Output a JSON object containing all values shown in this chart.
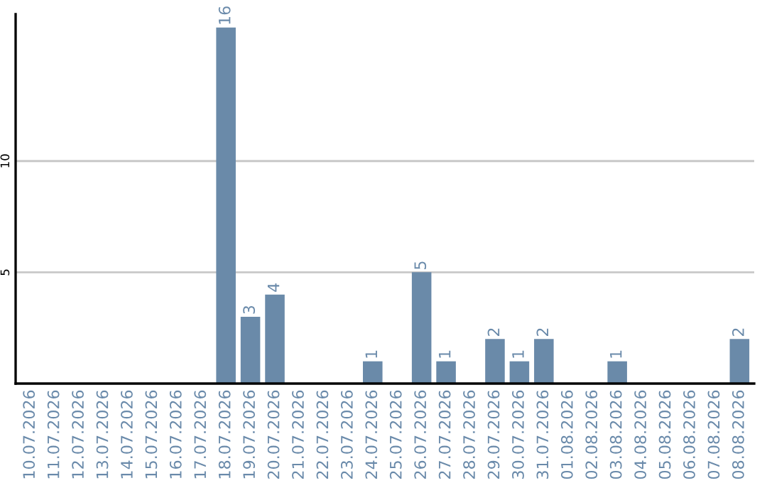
{
  "chart_data": {
    "type": "bar",
    "categories": [
      "10.07.2026",
      "11.07.2026",
      "12.07.2026",
      "13.07.2026",
      "14.07.2026",
      "15.07.2026",
      "16.07.2026",
      "17.07.2026",
      "18.07.2026",
      "19.07.2026",
      "20.07.2026",
      "21.07.2026",
      "22.07.2026",
      "23.07.2026",
      "24.07.2026",
      "25.07.2026",
      "26.07.2026",
      "27.07.2026",
      "28.07.2026",
      "29.07.2026",
      "30.07.2026",
      "31.07.2026",
      "01.08.2026",
      "02.08.2026",
      "03.08.2026",
      "04.08.2026",
      "05.08.2026",
      "06.08.2026",
      "07.08.2026",
      "08.08.2026"
    ],
    "values": [
      0,
      0,
      0,
      0,
      0,
      0,
      0,
      0,
      16,
      3,
      4,
      0,
      0,
      0,
      1,
      0,
      5,
      1,
      0,
      2,
      1,
      2,
      0,
      0,
      1,
      0,
      0,
      0,
      0,
      2
    ],
    "value_labels": [
      null,
      null,
      null,
      null,
      null,
      null,
      null,
      null,
      "16",
      "3",
      "4",
      null,
      null,
      null,
      "1",
      null,
      "5",
      "1",
      null,
      "2",
      "1",
      "2",
      null,
      null,
      "1",
      null,
      null,
      null,
      null,
      "2"
    ],
    "color": "#6a8aa9",
    "ylim": [
      0,
      16.6
    ],
    "yticks": [
      5,
      10
    ],
    "grid": "y"
  }
}
